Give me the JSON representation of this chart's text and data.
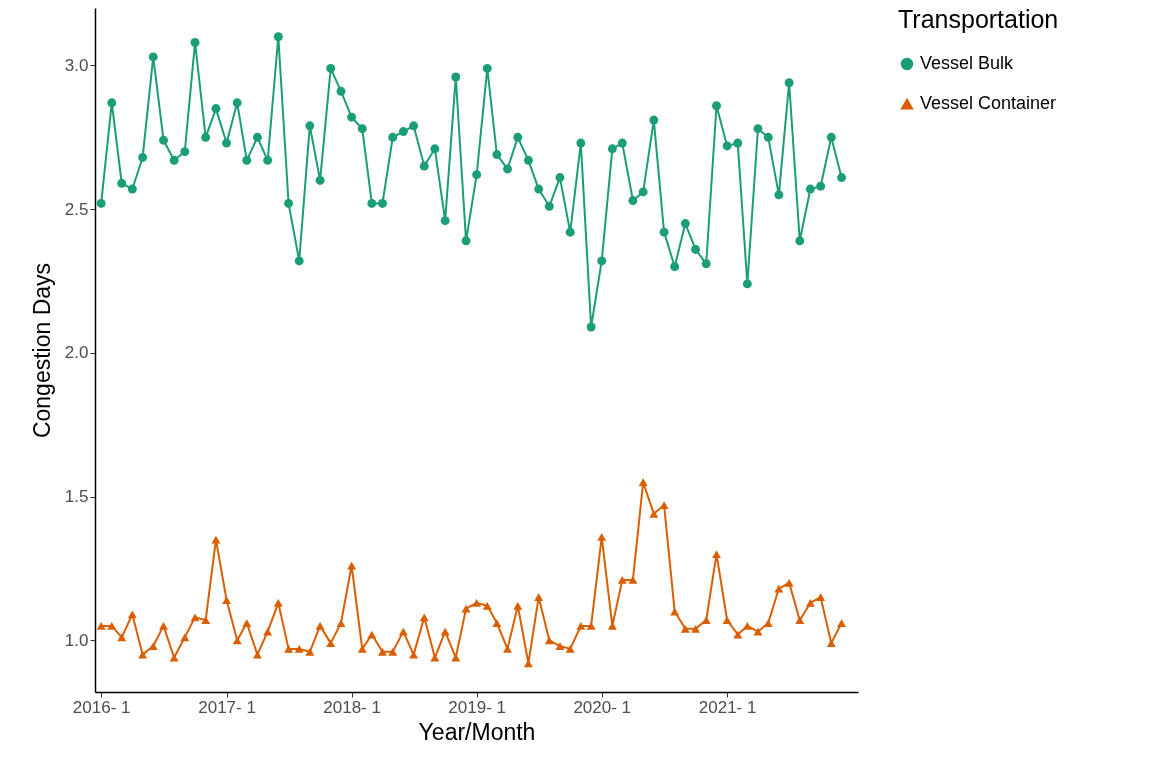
{
  "chart_data": {
    "type": "line",
    "xlabel": "Year/Month",
    "ylabel": "Congestion Days",
    "legend_title": "Transportation",
    "legend": "right",
    "grid": false,
    "line_style": "solid",
    "x": [
      "2016-01",
      "2016-02",
      "2016-03",
      "2016-04",
      "2016-05",
      "2016-06",
      "2016-07",
      "2016-08",
      "2016-09",
      "2016-10",
      "2016-11",
      "2016-12",
      "2017-01",
      "2017-02",
      "2017-03",
      "2017-04",
      "2017-05",
      "2017-06",
      "2017-07",
      "2017-08",
      "2017-09",
      "2017-10",
      "2017-11",
      "2017-12",
      "2018-01",
      "2018-02",
      "2018-03",
      "2018-04",
      "2018-05",
      "2018-06",
      "2018-07",
      "2018-08",
      "2018-09",
      "2018-10",
      "2018-11",
      "2018-12",
      "2019-01",
      "2019-02",
      "2019-03",
      "2019-04",
      "2019-05",
      "2019-06",
      "2019-07",
      "2019-08",
      "2019-09",
      "2019-10",
      "2019-11",
      "2019-12",
      "2020-01",
      "2020-02",
      "2020-03",
      "2020-04",
      "2020-05",
      "2020-06",
      "2020-07",
      "2020-08",
      "2020-09",
      "2020-10",
      "2020-11",
      "2020-12",
      "2021-01",
      "2021-02",
      "2021-03",
      "2021-04",
      "2021-05",
      "2021-06",
      "2021-07",
      "2021-08",
      "2021-09",
      "2021-10",
      "2021-11",
      "2021-12"
    ],
    "xlim": [
      "2015-12-14",
      "2022-01-18"
    ],
    "xticks": [
      {
        "value": "2016-01",
        "label": "2016- 1"
      },
      {
        "value": "2017-01",
        "label": "2017- 1"
      },
      {
        "value": "2018-01",
        "label": "2018- 1"
      },
      {
        "value": "2019-01",
        "label": "2019- 1"
      },
      {
        "value": "2020-01",
        "label": "2020- 1"
      },
      {
        "value": "2021-01",
        "label": "2021- 1"
      }
    ],
    "ylim": [
      0.82,
      3.2
    ],
    "yticks": [
      {
        "value": 1,
        "label": "1.0"
      },
      {
        "value": 1.5,
        "label": "1.5"
      },
      {
        "value": 2,
        "label": "2.0"
      },
      {
        "value": 2.5,
        "label": "2.5"
      },
      {
        "value": 3,
        "label": "3.0"
      }
    ],
    "series": [
      {
        "name": "Vessel Bulk",
        "color": "#1b9e77",
        "marker": "circle",
        "values": [
          2.52,
          2.87,
          2.59,
          2.57,
          2.68,
          3.03,
          2.74,
          2.67,
          2.7,
          3.08,
          2.75,
          2.85,
          2.73,
          2.87,
          2.67,
          2.75,
          2.67,
          3.1,
          2.52,
          2.32,
          2.79,
          2.6,
          2.99,
          2.91,
          2.82,
          2.78,
          2.52,
          2.52,
          2.75,
          2.77,
          2.79,
          2.65,
          2.71,
          2.46,
          2.96,
          2.39,
          2.62,
          2.99,
          2.69,
          2.64,
          2.75,
          2.67,
          2.57,
          2.51,
          2.61,
          2.42,
          2.73,
          2.09,
          2.32,
          2.71,
          2.73,
          2.53,
          2.56,
          2.81,
          2.42,
          2.3,
          2.45,
          2.36,
          2.31,
          2.86,
          2.72,
          2.73,
          2.24,
          2.78,
          2.75,
          2.55,
          2.94,
          2.39,
          2.57,
          2.58,
          2.75,
          2.61
        ]
      },
      {
        "name": "Vessel Container",
        "color": "#d95f02",
        "marker": "triangle",
        "values": [
          1.05,
          1.05,
          1.01,
          1.09,
          0.95,
          0.98,
          1.05,
          0.94,
          1.01,
          1.08,
          1.07,
          1.35,
          1.14,
          1.0,
          1.06,
          0.95,
          1.03,
          1.13,
          0.97,
          0.97,
          0.96,
          1.05,
          0.99,
          1.06,
          1.26,
          0.97,
          1.02,
          0.96,
          0.96,
          1.03,
          0.95,
          1.08,
          0.94,
          1.03,
          0.94,
          1.11,
          1.13,
          1.12,
          1.06,
          0.97,
          1.12,
          0.92,
          1.15,
          1.0,
          0.98,
          0.97,
          1.05,
          1.05,
          1.36,
          1.05,
          1.21,
          1.21,
          1.55,
          1.44,
          1.47,
          1.1,
          1.04,
          1.04,
          1.07,
          1.3,
          1.07,
          1.02,
          1.05,
          1.03,
          1.06,
          1.18,
          1.2,
          1.07,
          1.13,
          1.15,
          0.99,
          1.06
        ]
      }
    ]
  }
}
